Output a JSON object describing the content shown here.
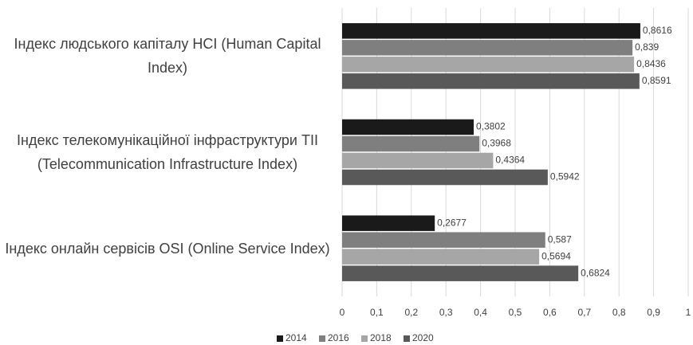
{
  "chart_data": {
    "type": "bar",
    "orientation": "horizontal",
    "categories": [
      "Індекс людського капіталу HCI (Human Capital Index)",
      "Індекс телекомунікаційної інфраструктури TII (Telecommunication Infrastructure Index)",
      "Індекс онлайн сервісів OSI (Online Service Index)"
    ],
    "series": [
      {
        "name": "2014",
        "color": "#1a1a1a",
        "values": [
          0.8616,
          0.3802,
          0.2677
        ],
        "value_labels": [
          "0,8616",
          "0,3802",
          "0,2677"
        ]
      },
      {
        "name": "2016",
        "color": "#7f7f7f",
        "values": [
          0.839,
          0.3968,
          0.587
        ],
        "value_labels": [
          "0,839",
          "0,3968",
          "0,587"
        ]
      },
      {
        "name": "2018",
        "color": "#a6a6a6",
        "values": [
          0.8436,
          0.4364,
          0.5694
        ],
        "value_labels": [
          "0,8436",
          "0,4364",
          "0,5694"
        ]
      },
      {
        "name": "2020",
        "color": "#595959",
        "values": [
          0.8591,
          0.5942,
          0.6824
        ],
        "value_labels": [
          "0,8591",
          "0,5942",
          "0,6824"
        ]
      }
    ],
    "xlim": [
      0,
      1
    ],
    "xticks": [
      0,
      {
        "value": 0.1,
        "label": "0,1"
      },
      {
        "value": 0.2,
        "label": "0,2"
      },
      {
        "value": 0.3,
        "label": "0,3"
      },
      {
        "value": 0.4,
        "label": "0,4"
      },
      {
        "value": 0.5,
        "label": "0,5"
      },
      {
        "value": 0.6,
        "label": "0,6"
      },
      {
        "value": 0.7,
        "label": "0,7"
      },
      {
        "value": 0.8,
        "label": "0,8"
      },
      {
        "value": 0.9,
        "label": "0,9"
      },
      1
    ],
    "grid": true,
    "legend": "bottom"
  }
}
